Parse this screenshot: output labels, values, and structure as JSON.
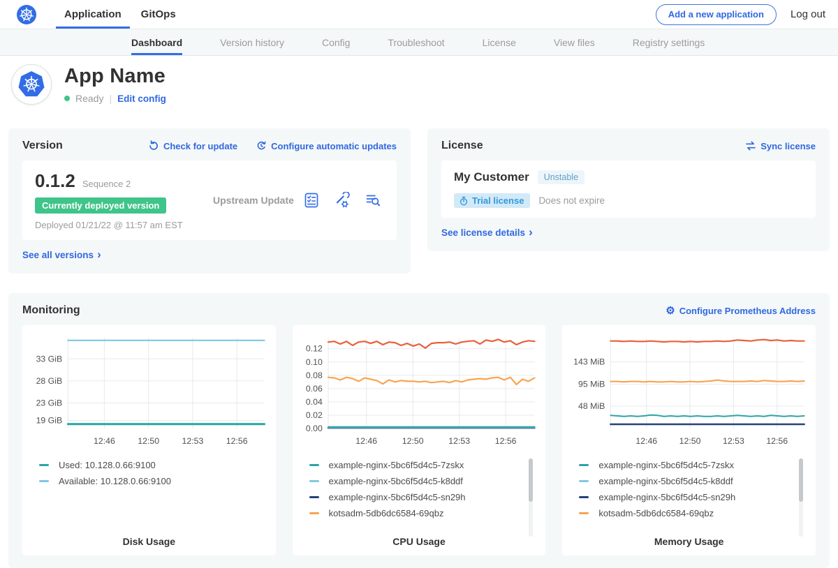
{
  "colors": {
    "accent_blue": "#326de6",
    "link_blue": "#2f68e0",
    "success_green": "#3fc48a",
    "card_bg": "#f5f8f9",
    "muted_text": "#9b9b9b",
    "trial_badge_bg": "#d2e9f7",
    "trial_badge_text": "#3299dc",
    "unstable_badge_text": "#61a0c7"
  },
  "icons": {
    "chevron_right": "›",
    "gear": "⚙"
  },
  "topnav": {
    "tabs": [
      {
        "label": "Application",
        "active": true
      },
      {
        "label": "GitOps",
        "active": false
      }
    ],
    "add_button": "Add a new application",
    "logout": "Log out"
  },
  "subnav": {
    "items": [
      "Dashboard",
      "Version history",
      "Config",
      "Troubleshoot",
      "License",
      "View files",
      "Registry settings"
    ],
    "active_index": 0
  },
  "app_header": {
    "name": "App Name",
    "status": "Ready",
    "edit_config": "Edit config"
  },
  "version_card": {
    "title": "Version",
    "check_update_label": "Check for update",
    "auto_updates_label": "Configure automatic updates",
    "version_number": "0.1.2",
    "sequence_label": "Sequence 2",
    "deployed_badge": "Currently deployed version",
    "deployed_text": "Deployed 01/21/22 @ 11:57 am EST",
    "upstream_label": "Upstream Update",
    "action_icons": [
      "preflight-checks-icon",
      "config-wrench-icon",
      "deploy-logs-icon"
    ],
    "see_all_label": "See all versions"
  },
  "license_card": {
    "title": "License",
    "sync_label": "Sync license",
    "customer": "My Customer",
    "channel_badge": "Unstable",
    "trial_badge": "Trial license",
    "expiry": "Does not expire",
    "details_label": "See license details"
  },
  "monitoring": {
    "title": "Monitoring",
    "configure_label": "Configure Prometheus Address",
    "charts": [
      {
        "title": "Disk Usage",
        "type": "line",
        "left_margin": 54,
        "ylim": [
          17.2,
          37.8
        ],
        "y_ticks": [
          {
            "label": "33 GiB",
            "value": 33
          },
          {
            "label": "28 GiB",
            "value": 28
          },
          {
            "label": "23 GiB",
            "value": 23
          },
          {
            "label": "19 GiB",
            "value": 19
          }
        ],
        "x_ticks": [
          {
            "label": "12:46",
            "pos": 0.185
          },
          {
            "label": "12:50",
            "pos": 0.41
          },
          {
            "label": "12:53",
            "pos": 0.635
          },
          {
            "label": "12:56",
            "pos": 0.86
          }
        ],
        "series": [
          {
            "name": "Available: 10.128.0.66:9100",
            "color": "#7fc8e4",
            "width": 2.2,
            "values": [
              37.2,
              37.2
            ]
          },
          {
            "name": "Used: 10.128.0.66:9100",
            "color": "#2aa5a5",
            "width": 3,
            "values": [
              18.2,
              18.2
            ]
          }
        ],
        "legend": [
          {
            "label": "Used: 10.128.0.66:9100",
            "color": "#2aa5a5"
          },
          {
            "label": "Available: 10.128.0.66:9100",
            "color": "#7fc8e4"
          }
        ],
        "scrollbar": false
      },
      {
        "title": "CPU Usage",
        "type": "line",
        "left_margin": 40,
        "ylim": [
          0,
          0.1365
        ],
        "y_ticks": [
          {
            "label": "0.12",
            "value": 0.12
          },
          {
            "label": "0.10",
            "value": 0.1
          },
          {
            "label": "0.08",
            "value": 0.08
          },
          {
            "label": "0.06",
            "value": 0.06
          },
          {
            "label": "0.04",
            "value": 0.04
          },
          {
            "label": "0.02",
            "value": 0.02
          },
          {
            "label": "0.00",
            "value": 0.0
          }
        ],
        "x_ticks": [
          {
            "label": "12:46",
            "pos": 0.185
          },
          {
            "label": "12:50",
            "pos": 0.41
          },
          {
            "label": "12:53",
            "pos": 0.635
          },
          {
            "label": "12:56",
            "pos": 0.86
          }
        ],
        "series": [
          {
            "name": "",
            "color": "#e8603a",
            "width": 2.2,
            "values": [
              0.13,
              0.131,
              0.127,
              0.131,
              0.125,
              0.13,
              0.131,
              0.128,
              0.131,
              0.126,
              0.13,
              0.129,
              0.125,
              0.128,
              0.124,
              0.127,
              0.121,
              0.128,
              0.129,
              0.129,
              0.13,
              0.127,
              0.13,
              0.131,
              0.132,
              0.127,
              0.133,
              0.131,
              0.134,
              0.13,
              0.132,
              0.126,
              0.13,
              0.132,
              0.131
            ]
          },
          {
            "name": "kotsadm-5db6dc6584-69qbz",
            "color": "#f9a452",
            "width": 2.2,
            "values": [
              0.077,
              0.076,
              0.073,
              0.077,
              0.075,
              0.071,
              0.076,
              0.074,
              0.072,
              0.067,
              0.073,
              0.07,
              0.072,
              0.071,
              0.071,
              0.07,
              0.071,
              0.069,
              0.07,
              0.071,
              0.069,
              0.072,
              0.07,
              0.073,
              0.074,
              0.075,
              0.074,
              0.076,
              0.077,
              0.073,
              0.077,
              0.066,
              0.074,
              0.071,
              0.076
            ]
          },
          {
            "name": "example-nginx-5bc6f5d4c5-sn29h",
            "color": "#25417a",
            "width": 2.4,
            "values": [
              0.0008,
              0.0008
            ]
          },
          {
            "name": "example-nginx-5bc6f5d4c5-k8ddf",
            "color": "#7fc8e4",
            "width": 2,
            "values": [
              0.0016,
              0.0016
            ]
          },
          {
            "name": "example-nginx-5bc6f5d4c5-7zskx",
            "color": "#2aa5a5",
            "width": 2,
            "values": [
              0.0024,
              0.0024
            ]
          }
        ],
        "legend": [
          {
            "label": "example-nginx-5bc6f5d4c5-7zskx",
            "color": "#2aa5a5"
          },
          {
            "label": "example-nginx-5bc6f5d4c5-k8ddf",
            "color": "#7fc8e4"
          },
          {
            "label": "example-nginx-5bc6f5d4c5-sn29h",
            "color": "#25417a"
          },
          {
            "label": "kotsadm-5db6dc6584-69qbz",
            "color": "#f9a452"
          }
        ],
        "scrollbar": true
      },
      {
        "title": "Memory Usage",
        "type": "line",
        "left_margin": 58,
        "ylim": [
          0,
          195
        ],
        "y_ticks": [
          {
            "label": "143 MiB",
            "value": 143
          },
          {
            "label": "95 MiB",
            "value": 95
          },
          {
            "label": "48 MiB",
            "value": 48
          }
        ],
        "x_ticks": [
          {
            "label": "12:46",
            "pos": 0.185
          },
          {
            "label": "12:50",
            "pos": 0.41
          },
          {
            "label": "12:53",
            "pos": 0.635
          },
          {
            "label": "12:56",
            "pos": 0.86
          }
        ],
        "series": [
          {
            "name": "",
            "color": "#e8603a",
            "width": 2.2,
            "values": [
              188,
              188,
              187,
              188,
              187,
              187,
              188,
              187,
              186,
              187,
              187,
              186,
              187,
              186,
              187,
              187,
              188,
              187,
              188,
              190,
              189,
              188,
              190,
              191,
              189,
              190,
              188,
              189,
              188,
              188
            ]
          },
          {
            "name": "kotsadm-5db6dc6584-69qbz",
            "color": "#f9a452",
            "width": 2.2,
            "values": [
              101,
              101,
              100,
              101,
              101,
              100,
              101,
              100,
              100,
              101,
              100,
              100,
              101,
              100,
              101,
              102,
              104,
              102,
              101,
              101,
              101,
              102,
              101,
              103,
              102,
              101,
              101,
              102,
              101,
              102
            ]
          },
          {
            "name": "example-nginx-5bc6f5d4c5-7zskx",
            "color": "#2aa5a5",
            "width": 2,
            "values": [
              28,
              27,
              26,
              27,
              26,
              27,
              29,
              28,
              26,
              27,
              26,
              27,
              26,
              27,
              26,
              26,
              27,
              26,
              27,
              28,
              27,
              26,
              27,
              26,
              28,
              27,
              26,
              27,
              26,
              27
            ]
          },
          {
            "name": "example-nginx-5bc6f5d4c5-sn29h",
            "color": "#25417a",
            "width": 2.6,
            "values": [
              9,
              9
            ]
          }
        ],
        "legend": [
          {
            "label": "example-nginx-5bc6f5d4c5-7zskx",
            "color": "#2aa5a5"
          },
          {
            "label": "example-nginx-5bc6f5d4c5-k8ddf",
            "color": "#7fc8e4"
          },
          {
            "label": "example-nginx-5bc6f5d4c5-sn29h",
            "color": "#25417a"
          },
          {
            "label": "kotsadm-5db6dc6584-69qbz",
            "color": "#f9a452"
          }
        ],
        "scrollbar": true
      }
    ]
  }
}
